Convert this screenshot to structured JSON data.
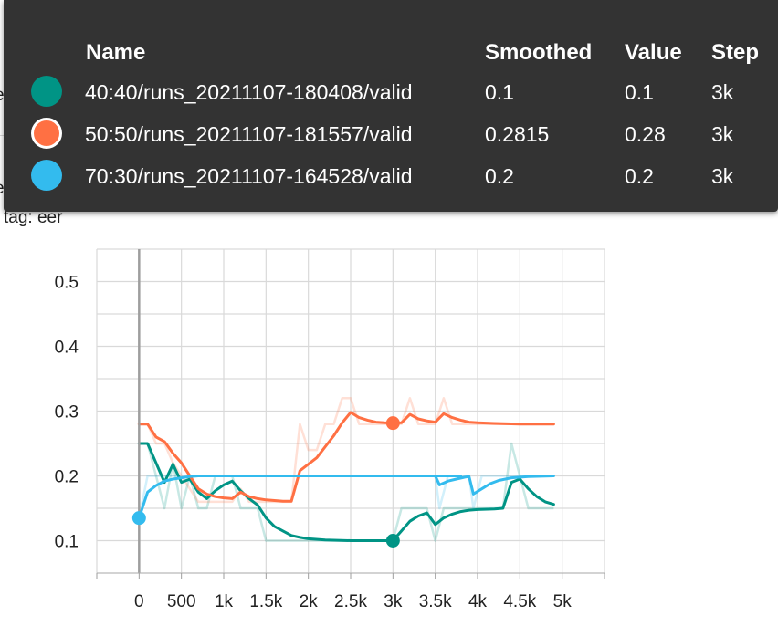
{
  "background": {
    "title_fragment_1": "eer",
    "title_fragment_2": "eer",
    "tag_label": "tag: eer"
  },
  "tooltip": {
    "headers": {
      "name": "Name",
      "smoothed": "Smoothed",
      "value": "Value",
      "step": "Step"
    },
    "rows": [
      {
        "name": "40:40/runs_20211107-180408/valid",
        "smoothed": "0.1",
        "value": "0.1",
        "step": "3k",
        "color": "#009485",
        "selected": false
      },
      {
        "name": "50:50/runs_20211107-181557/valid",
        "smoothed": "0.2815",
        "value": "0.28",
        "step": "3k",
        "color": "#ff7043",
        "selected": true
      },
      {
        "name": "70:30/runs_20211107-164528/valid",
        "smoothed": "0.2",
        "value": "0.2",
        "step": "3k",
        "color": "#33bbee",
        "selected": false
      }
    ]
  },
  "chart_data": {
    "type": "line",
    "title": "",
    "xlabel": "",
    "ylabel": "",
    "xlim": [
      -500,
      5500
    ],
    "ylim": [
      0.05,
      0.55
    ],
    "x_ticks": [
      0,
      500,
      1000,
      1500,
      2000,
      2500,
      3000,
      3500,
      4000,
      4500,
      5000
    ],
    "x_tick_labels": [
      "0",
      "500",
      "1k",
      "1.5k",
      "2k",
      "2.5k",
      "3k",
      "3.5k",
      "4k",
      "4.5k",
      "5k"
    ],
    "y_ticks": [
      0.1,
      0.2,
      0.3,
      0.4,
      0.5
    ],
    "y_tick_labels": [
      "0.1",
      "0.2",
      "0.3",
      "0.4",
      "0.5"
    ],
    "grid": true,
    "hover_step": 3000,
    "series": [
      {
        "name": "40:40/runs_20211107-180408/valid",
        "color": "#009485",
        "smoothed": [
          [
            0,
            0.25
          ],
          [
            100,
            0.25
          ],
          [
            200,
            0.22
          ],
          [
            300,
            0.19
          ],
          [
            400,
            0.218
          ],
          [
            500,
            0.19
          ],
          [
            600,
            0.195
          ],
          [
            700,
            0.175
          ],
          [
            800,
            0.165
          ],
          [
            900,
            0.177
          ],
          [
            1000,
            0.186
          ],
          [
            1100,
            0.192
          ],
          [
            1200,
            0.177
          ],
          [
            1300,
            0.165
          ],
          [
            1400,
            0.155
          ],
          [
            1500,
            0.135
          ],
          [
            1600,
            0.122
          ],
          [
            1700,
            0.115
          ],
          [
            1800,
            0.108
          ],
          [
            1900,
            0.105
          ],
          [
            2000,
            0.103
          ],
          [
            2200,
            0.101
          ],
          [
            2500,
            0.1
          ],
          [
            3000,
            0.1
          ],
          [
            3100,
            0.115
          ],
          [
            3200,
            0.13
          ],
          [
            3300,
            0.138
          ],
          [
            3400,
            0.143
          ],
          [
            3500,
            0.125
          ],
          [
            3600,
            0.135
          ],
          [
            3700,
            0.141
          ],
          [
            3800,
            0.145
          ],
          [
            3900,
            0.147
          ],
          [
            4000,
            0.148
          ],
          [
            4200,
            0.149
          ],
          [
            4300,
            0.15
          ],
          [
            4400,
            0.19
          ],
          [
            4500,
            0.195
          ],
          [
            4600,
            0.18
          ],
          [
            4700,
            0.168
          ],
          [
            4800,
            0.16
          ],
          [
            4900,
            0.156
          ]
        ],
        "raw": [
          [
            0,
            0.25
          ],
          [
            100,
            0.25
          ],
          [
            200,
            0.2
          ],
          [
            300,
            0.15
          ],
          [
            400,
            0.22
          ],
          [
            500,
            0.15
          ],
          [
            600,
            0.2
          ],
          [
            700,
            0.15
          ],
          [
            800,
            0.15
          ],
          [
            900,
            0.2
          ],
          [
            1000,
            0.2
          ],
          [
            1100,
            0.2
          ],
          [
            1200,
            0.15
          ],
          [
            1300,
            0.15
          ],
          [
            1400,
            0.15
          ],
          [
            1500,
            0.1
          ],
          [
            1600,
            0.1
          ],
          [
            1700,
            0.1
          ],
          [
            1800,
            0.1
          ],
          [
            1900,
            0.1
          ],
          [
            2000,
            0.1
          ],
          [
            3000,
            0.1
          ],
          [
            3100,
            0.15
          ],
          [
            3200,
            0.15
          ],
          [
            3300,
            0.15
          ],
          [
            3400,
            0.15
          ],
          [
            3500,
            0.1
          ],
          [
            3600,
            0.15
          ],
          [
            3700,
            0.15
          ],
          [
            3800,
            0.15
          ],
          [
            3900,
            0.15
          ],
          [
            4000,
            0.15
          ],
          [
            4300,
            0.15
          ],
          [
            4400,
            0.25
          ],
          [
            4500,
            0.2
          ],
          [
            4600,
            0.15
          ],
          [
            4700,
            0.15
          ],
          [
            4800,
            0.15
          ],
          [
            4900,
            0.15
          ]
        ]
      },
      {
        "name": "50:50/runs_20211107-181557/valid",
        "color": "#ff7043",
        "smoothed": [
          [
            0,
            0.28
          ],
          [
            100,
            0.28
          ],
          [
            200,
            0.26
          ],
          [
            300,
            0.253
          ],
          [
            400,
            0.235
          ],
          [
            500,
            0.22
          ],
          [
            600,
            0.2
          ],
          [
            700,
            0.18
          ],
          [
            800,
            0.172
          ],
          [
            900,
            0.168
          ],
          [
            1000,
            0.166
          ],
          [
            1100,
            0.165
          ],
          [
            1200,
            0.175
          ],
          [
            1300,
            0.168
          ],
          [
            1400,
            0.165
          ],
          [
            1500,
            0.163
          ],
          [
            1600,
            0.162
          ],
          [
            1700,
            0.161
          ],
          [
            1800,
            0.161
          ],
          [
            1900,
            0.208
          ],
          [
            2000,
            0.218
          ],
          [
            2100,
            0.228
          ],
          [
            2200,
            0.245
          ],
          [
            2300,
            0.262
          ],
          [
            2400,
            0.282
          ],
          [
            2500,
            0.298
          ],
          [
            2600,
            0.29
          ],
          [
            2700,
            0.286
          ],
          [
            2800,
            0.283
          ],
          [
            2900,
            0.282
          ],
          [
            3000,
            0.2815
          ],
          [
            3100,
            0.282
          ],
          [
            3200,
            0.295
          ],
          [
            3300,
            0.288
          ],
          [
            3400,
            0.285
          ],
          [
            3500,
            0.283
          ],
          [
            3600,
            0.296
          ],
          [
            3700,
            0.29
          ],
          [
            3800,
            0.286
          ],
          [
            3900,
            0.283
          ],
          [
            4000,
            0.282
          ],
          [
            4200,
            0.281
          ],
          [
            4500,
            0.28
          ],
          [
            4900,
            0.28
          ]
        ],
        "raw": [
          [
            0,
            0.28
          ],
          [
            100,
            0.28
          ],
          [
            200,
            0.25
          ],
          [
            300,
            0.25
          ],
          [
            400,
            0.22
          ],
          [
            500,
            0.2
          ],
          [
            600,
            0.18
          ],
          [
            700,
            0.16
          ],
          [
            800,
            0.16
          ],
          [
            900,
            0.16
          ],
          [
            1000,
            0.16
          ],
          [
            1100,
            0.16
          ],
          [
            1200,
            0.18
          ],
          [
            1300,
            0.16
          ],
          [
            1400,
            0.16
          ],
          [
            1500,
            0.16
          ],
          [
            1600,
            0.16
          ],
          [
            1700,
            0.16
          ],
          [
            1800,
            0.16
          ],
          [
            1900,
            0.28
          ],
          [
            2000,
            0.24
          ],
          [
            2100,
            0.24
          ],
          [
            2200,
            0.28
          ],
          [
            2300,
            0.28
          ],
          [
            2400,
            0.32
          ],
          [
            2500,
            0.32
          ],
          [
            2600,
            0.28
          ],
          [
            2700,
            0.28
          ],
          [
            2800,
            0.28
          ],
          [
            2900,
            0.28
          ],
          [
            3000,
            0.28
          ],
          [
            3100,
            0.28
          ],
          [
            3200,
            0.32
          ],
          [
            3300,
            0.28
          ],
          [
            3400,
            0.28
          ],
          [
            3500,
            0.28
          ],
          [
            3600,
            0.32
          ],
          [
            3700,
            0.28
          ],
          [
            3800,
            0.28
          ],
          [
            3900,
            0.28
          ],
          [
            4000,
            0.28
          ],
          [
            4900,
            0.28
          ]
        ]
      },
      {
        "name": "70:30/runs_20211107-164528/valid",
        "color": "#33bbee",
        "smoothed": [
          [
            0,
            0.135
          ],
          [
            100,
            0.175
          ],
          [
            200,
            0.185
          ],
          [
            300,
            0.192
          ],
          [
            400,
            0.195
          ],
          [
            500,
            0.197
          ],
          [
            600,
            0.199
          ],
          [
            700,
            0.2
          ],
          [
            3800,
            0.2
          ],
          [
            3500,
            0.2
          ],
          [
            3550,
            0.186
          ],
          [
            3650,
            0.192
          ],
          [
            3750,
            0.195
          ],
          [
            3850,
            0.198
          ],
          [
            3900,
            0.199
          ],
          [
            3950,
            0.172
          ],
          [
            4050,
            0.18
          ],
          [
            4150,
            0.188
          ],
          [
            4250,
            0.193
          ],
          [
            4400,
            0.197
          ],
          [
            4600,
            0.199
          ],
          [
            4900,
            0.2
          ]
        ],
        "raw": [
          [
            0,
            0.135
          ],
          [
            100,
            0.2
          ],
          [
            200,
            0.2
          ],
          [
            300,
            0.2
          ],
          [
            3500,
            0.2
          ],
          [
            3550,
            0.15
          ],
          [
            3650,
            0.2
          ],
          [
            3900,
            0.2
          ],
          [
            3950,
            0.15
          ],
          [
            4050,
            0.2
          ],
          [
            4900,
            0.2
          ]
        ]
      }
    ]
  }
}
